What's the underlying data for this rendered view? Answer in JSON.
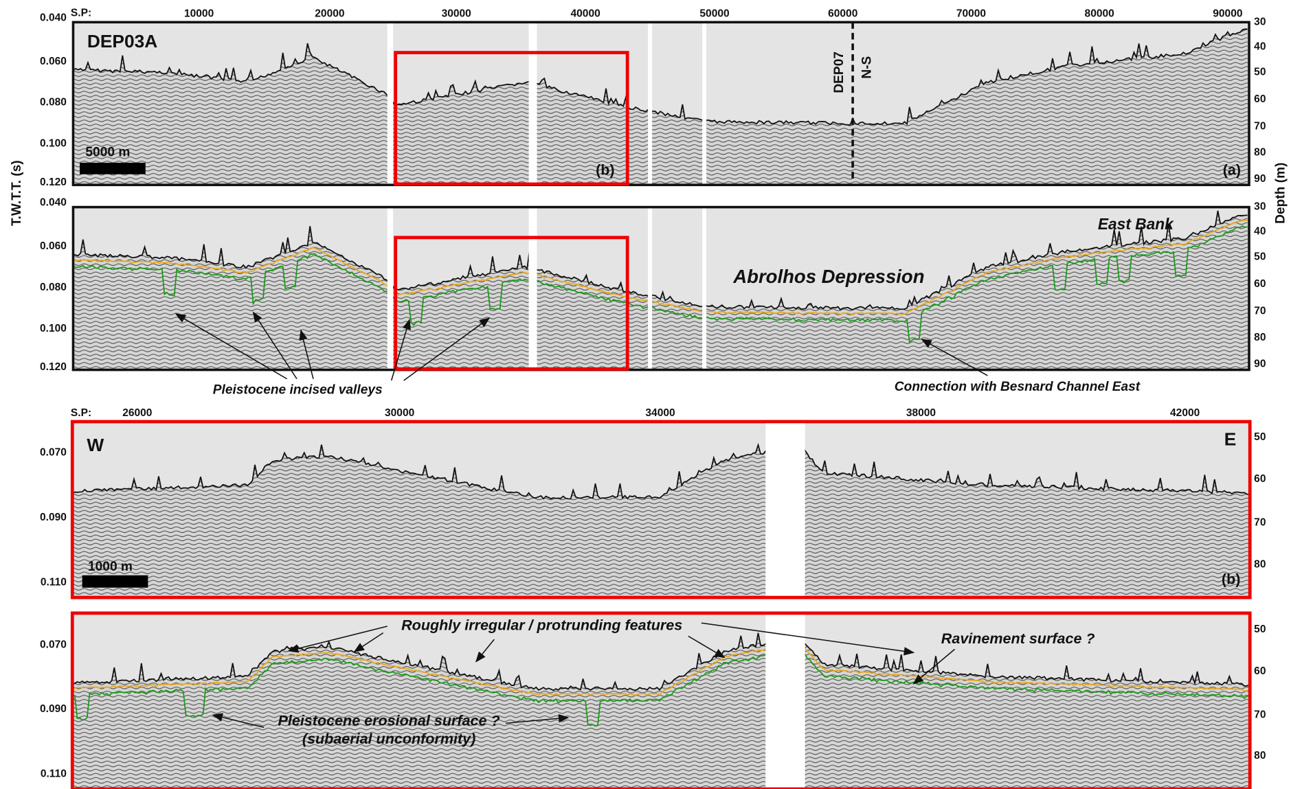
{
  "overview": {
    "shot_point_label": "S.P:",
    "shot_points": [
      "10000",
      "20000",
      "30000",
      "40000",
      "50000",
      "60000",
      "70000",
      "80000",
      "90000"
    ],
    "twtt_ticks": [
      "0.040",
      "0.060",
      "0.080",
      "0.100",
      "0.120"
    ],
    "depth_ticks": [
      "30",
      "40",
      "50",
      "60",
      "70",
      "80",
      "90"
    ],
    "twtt_title": "T.W.T.T. (s)",
    "depth_title": "Depth (m)",
    "panel_a": {
      "line_name": "DEP03A",
      "scale_bar": "5000 m",
      "inset_label": "(b)",
      "panel_label": "(a)",
      "crossing_line": "DEP07",
      "crossing_direction": "N-S"
    },
    "panel_a_interpreted": {
      "east_bank": "East Bank",
      "depression": "Abrolhos Depression",
      "valleys_note": "Pleistocene incised valleys",
      "channel_note": "Connection with Besnard Channel East"
    }
  },
  "detail": {
    "shot_point_label": "S.P:",
    "shot_points": [
      "26000",
      "30000",
      "34000",
      "38000",
      "42000"
    ],
    "twtt_ticks": [
      "0.070",
      "0.090",
      "0.110"
    ],
    "depth_ticks": [
      "50",
      "60",
      "70",
      "80"
    ],
    "panel_b": {
      "west": "W",
      "east": "E",
      "scale_bar": "1000 m",
      "panel_label": "(b)"
    },
    "panel_b_interpreted": {
      "features_note": "Roughly irregular / protrunding features",
      "ravinement_note": "Ravinement surface ?",
      "erosional_note": "Pleistocene erosional surface ?",
      "erosional_note_2": "(subaerial unconformity)"
    }
  }
}
